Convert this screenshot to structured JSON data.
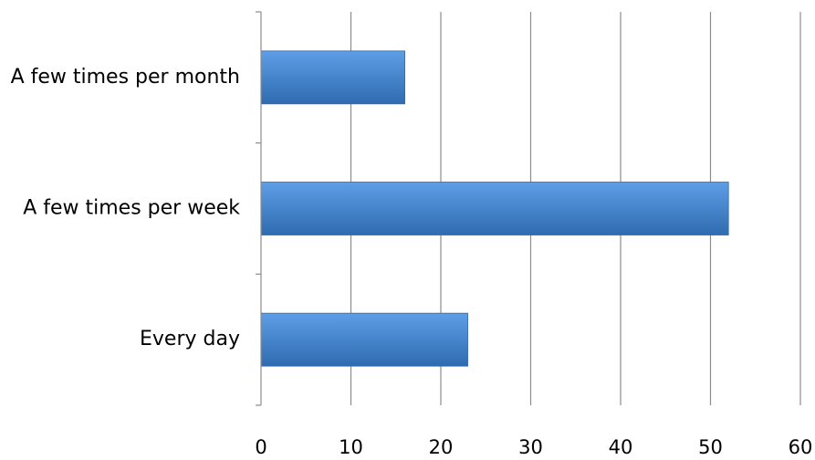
{
  "chart_data": {
    "type": "bar",
    "orientation": "horizontal",
    "categories": [
      "A few times per month",
      "A few times per week",
      "Every day"
    ],
    "values": [
      16,
      52,
      23
    ],
    "x_ticks": [
      "0",
      "10",
      "20",
      "30",
      "40",
      "50",
      "60"
    ],
    "xlim": [
      0,
      60
    ],
    "title": "",
    "xlabel": "",
    "ylabel": "",
    "grid": "vertical",
    "legend": "none",
    "bar_color": "#3f7fc8",
    "bar_color_light": "#5e9ee6",
    "bar_color_dark": "#2f6bb0",
    "grid_color": "#8c8c8c"
  }
}
